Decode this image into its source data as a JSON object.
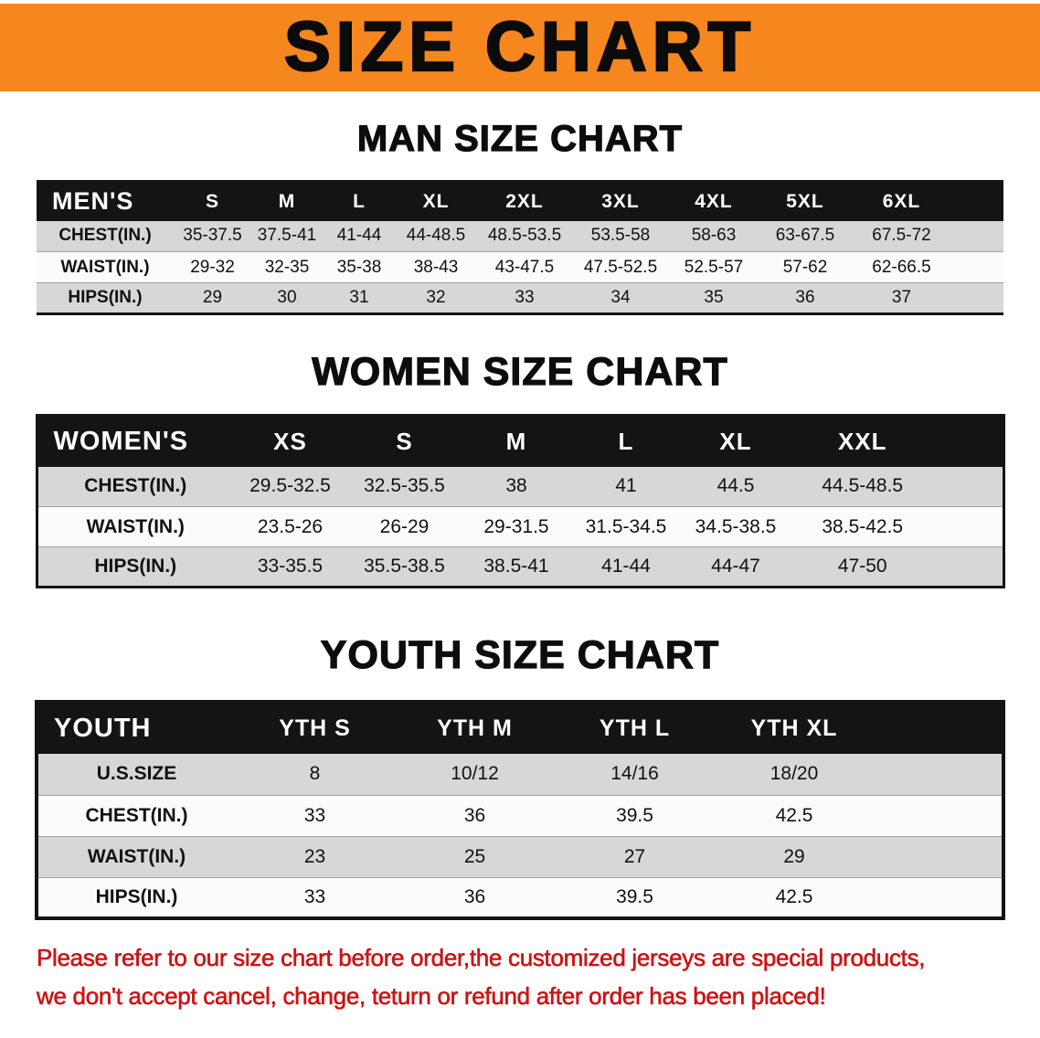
{
  "banner": {
    "title": "SIZE CHART"
  },
  "chart_data": [
    {
      "type": "table",
      "title": "MAN SIZE CHART",
      "corner_label": "MEN'S",
      "columns": [
        "S",
        "M",
        "L",
        "XL",
        "2XL",
        "3XL",
        "4XL",
        "5XL",
        "6XL"
      ],
      "rows": [
        {
          "label": "CHEST(IN.)",
          "values": [
            "35-37.5",
            "37.5-41",
            "41-44",
            "44-48.5",
            "48.5-53.5",
            "53.5-58",
            "58-63",
            "63-67.5",
            "67.5-72"
          ]
        },
        {
          "label": "WAIST(IN.)",
          "values": [
            "29-32",
            "32-35",
            "35-38",
            "38-43",
            "43-47.5",
            "47.5-52.5",
            "52.5-57",
            "57-62",
            "62-66.5"
          ]
        },
        {
          "label": "HIPS(IN.)",
          "values": [
            "29",
            "30",
            "31",
            "32",
            "33",
            "34",
            "35",
            "36",
            "37"
          ]
        }
      ]
    },
    {
      "type": "table",
      "title": "WOMEN SIZE CHART",
      "corner_label": "WOMEN'S",
      "columns": [
        "XS",
        "S",
        "M",
        "L",
        "XL",
        "XXL"
      ],
      "rows": [
        {
          "label": "CHEST(IN.)",
          "values": [
            "29.5-32.5",
            "32.5-35.5",
            "38",
            "41",
            "44.5",
            "44.5-48.5"
          ]
        },
        {
          "label": "WAIST(IN.)",
          "values": [
            "23.5-26",
            "26-29",
            "29-31.5",
            "31.5-34.5",
            "34.5-38.5",
            "38.5-42.5"
          ]
        },
        {
          "label": "HIPS(IN.)",
          "values": [
            "33-35.5",
            "35.5-38.5",
            "38.5-41",
            "41-44",
            "44-47",
            "47-50"
          ]
        }
      ]
    },
    {
      "type": "table",
      "title": "YOUTH SIZE CHART",
      "corner_label": "YOUTH",
      "columns": [
        "YTH S",
        "YTH M",
        "YTH L",
        "YTH XL"
      ],
      "rows": [
        {
          "label": "U.S.SIZE",
          "values": [
            "8",
            "10/12",
            "14/16",
            "18/20"
          ]
        },
        {
          "label": "CHEST(IN.)",
          "values": [
            "33",
            "36",
            "39.5",
            "42.5"
          ]
        },
        {
          "label": "WAIST(IN.)",
          "values": [
            "23",
            "25",
            "27",
            "29"
          ]
        },
        {
          "label": "HIPS(IN.)",
          "values": [
            "33",
            "36",
            "39.5",
            "42.5"
          ]
        }
      ]
    }
  ],
  "disclaimer": {
    "line1": "Please refer to our size chart before order,the customized jerseys are special products,",
    "line2": "we don't accept cancel, change, teturn or refund after order has been placed!"
  },
  "colors": {
    "banner_orange": "#F6861E",
    "table_header_black": "#141414",
    "row_gray": "#D7D7D7",
    "disclaimer_red": "#CC1414"
  }
}
